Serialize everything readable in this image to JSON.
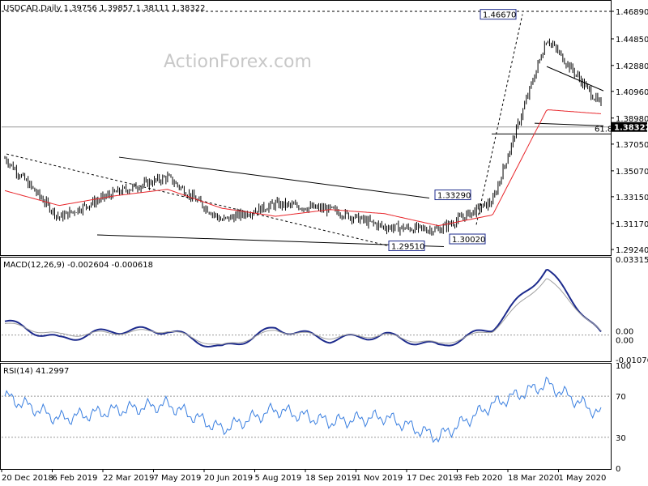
{
  "colors": {
    "candle": "#000000",
    "ma": "#e8262b",
    "macd": "#1c2a8c",
    "signal": "#a0a0a0",
    "rsi": "#3a7fe0",
    "trendline": "#000000",
    "level_box_border": "#1c2a8c",
    "watermark": "#c8c8c8",
    "last_price_bg": "#000000",
    "last_price_fg": "#ffffff"
  },
  "main_panel": {
    "header": "USDCAD,Daily  1.39756 1.39857 1.38111 1.38322",
    "watermark": "ActionForex.com",
    "y_ticks": [
      "1.46890",
      "1.44850",
      "1.42880",
      "1.40960",
      "1.38980",
      "1.37050",
      "1.35070",
      "1.33150",
      "1.31170",
      "1.29240"
    ],
    "last_price": "1.38322",
    "fib_label": "61.8",
    "level_labels": [
      "1.46670",
      "1.33290",
      "1.30020",
      "1.29510"
    ]
  },
  "macd_panel": {
    "header": "MACD(12,26,9) -0.002604 -0.000618",
    "y_ticks": [
      "0.033155",
      "0.00",
      "0.00",
      "-0.010769"
    ]
  },
  "rsi_panel": {
    "header": "RSI(14) 41.2997",
    "y_ticks": [
      "100",
      "70",
      "30",
      "0"
    ]
  },
  "x_axis": {
    "labels": [
      "20 Dec 2018",
      "6 Feb 2019",
      "22 Mar 2019",
      "7 May 2019",
      "20 Jun 2019",
      "5 Aug 2019",
      "18 Sep 2019",
      "1 Nov 2019",
      "17 Dec 2019",
      "3 Feb 2020",
      "18 Mar 2020",
      "1 May 2020"
    ]
  },
  "chart_data": [
    {
      "type": "line",
      "title": "USDCAD,Daily  1.39756 1.39857 1.38111 1.38322",
      "x": [
        "20 Dec 2018",
        "6 Feb 2019",
        "22 Mar 2019",
        "7 May 2019",
        "20 Jun 2019",
        "5 Aug 2019",
        "18 Sep 2019",
        "1 Nov 2019",
        "17 Dec 2019",
        "3 Feb 2020",
        "18 Mar 2020",
        "1 May 2020"
      ],
      "ylim": [
        1.2924,
        1.4689
      ],
      "series": [
        {
          "name": "USDCAD",
          "values": [
            1.36,
            1.316,
            1.334,
            1.346,
            1.314,
            1.326,
            1.322,
            1.309,
            1.307,
            1.328,
            1.449,
            1.399
          ]
        },
        {
          "name": "MA",
          "values": [
            1.336,
            1.325,
            1.332,
            1.337,
            1.323,
            1.317,
            1.322,
            1.319,
            1.31,
            1.318,
            1.396,
            1.393
          ]
        }
      ]
    },
    {
      "type": "line",
      "title": "MACD(12,26,9) -0.002604 -0.000618",
      "x": [
        "20 Dec 2018",
        "6 Feb 2019",
        "22 Mar 2019",
        "7 May 2019",
        "20 Jun 2019",
        "5 Aug 2019",
        "18 Sep 2019",
        "1 Nov 2019",
        "17 Dec 2019",
        "3 Feb 2020",
        "18 Mar 2020",
        "1 May 2020"
      ],
      "ylim": [
        -0.010769,
        0.033155
      ],
      "series": [
        {
          "name": "MACD",
          "values": [
            0.006,
            -0.002,
            0.002,
            0.002,
            -0.006,
            0.003,
            -0.002,
            0.0,
            -0.005,
            0.003,
            0.029,
            0.0
          ]
        },
        {
          "name": "Signal",
          "values": [
            0.005,
            0.0,
            0.001,
            0.002,
            -0.005,
            0.002,
            -0.001,
            0.0,
            -0.004,
            0.002,
            0.025,
            0.001
          ]
        }
      ]
    },
    {
      "type": "line",
      "title": "RSI(14) 41.2997",
      "x": [
        "20 Dec 2018",
        "6 Feb 2019",
        "22 Mar 2019",
        "7 May 2019",
        "20 Jun 2019",
        "5 Aug 2019",
        "18 Sep 2019",
        "1 Nov 2019",
        "17 Dec 2019",
        "3 Feb 2020",
        "18 Mar 2020",
        "1 May 2020"
      ],
      "ylim": [
        0,
        100
      ],
      "series": [
        {
          "name": "RSI",
          "values": [
            70,
            48,
            56,
            62,
            38,
            57,
            45,
            50,
            30,
            62,
            82,
            52
          ]
        }
      ]
    }
  ]
}
